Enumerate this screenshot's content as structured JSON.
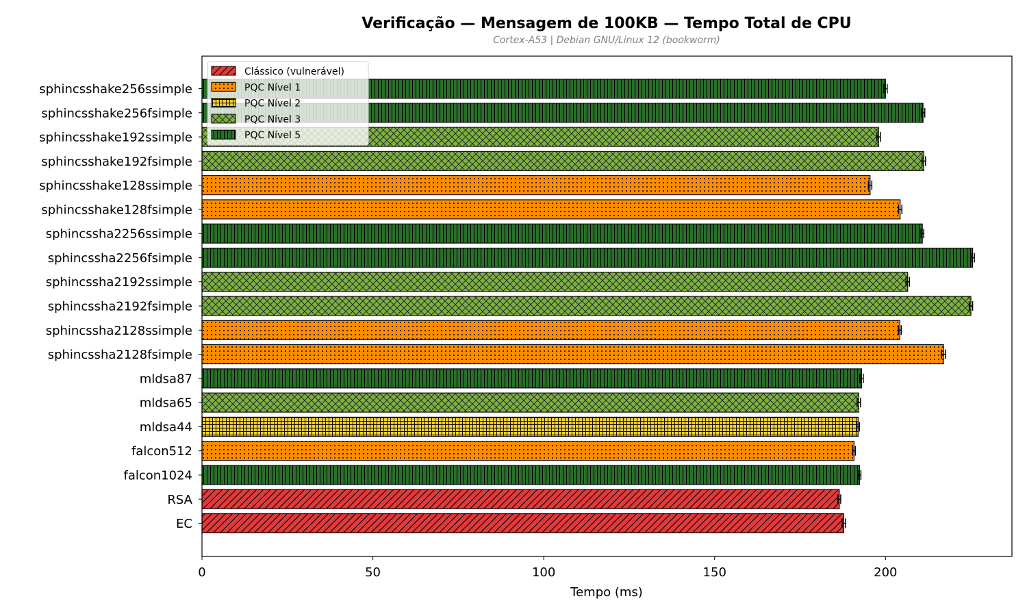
{
  "chart_data": {
    "type": "bar",
    "orientation": "horizontal",
    "title": "Verificação — Mensagem de 100KB — Tempo Total de CPU",
    "subtitle": "Cortex-A53 | Debian GNU/Linux 12 (bookworm)",
    "xlabel": "Tempo (ms)",
    "ylabel": "",
    "xlim": [
      0,
      237
    ],
    "xticks": [
      0,
      50,
      100,
      150,
      200
    ],
    "grid": false,
    "legend_position": "top-left",
    "legend": [
      {
        "key": "classic",
        "label": "Clássico (vulnerável)",
        "color": "#e03a3a",
        "hatch": "diagonal"
      },
      {
        "key": "n1",
        "label": "PQC Nível 1",
        "color": "#ff8c00",
        "hatch": "dots"
      },
      {
        "key": "n2",
        "label": "PQC Nível 2",
        "color": "#f5d033",
        "hatch": "grid"
      },
      {
        "key": "n3",
        "label": "PQC Nível 3",
        "color": "#7cb043",
        "hatch": "crosshatch"
      },
      {
        "key": "n5",
        "label": "PQC Nível 5",
        "color": "#2a6e2a",
        "hatch": "vertical"
      }
    ],
    "bars": [
      {
        "label": "sphincsshake256ssimple",
        "value": 200.0,
        "error": 0.5,
        "category": "n5"
      },
      {
        "label": "sphincsshake256fsimple",
        "value": 211.0,
        "error": 0.5,
        "category": "n5"
      },
      {
        "label": "sphincsshake192ssimple",
        "value": 198.0,
        "error": 0.5,
        "category": "n3"
      },
      {
        "label": "sphincsshake192fsimple",
        "value": 211.2,
        "error": 0.5,
        "category": "n3"
      },
      {
        "label": "sphincsshake128ssimple",
        "value": 195.5,
        "error": 0.5,
        "category": "n1"
      },
      {
        "label": "sphincsshake128fsimple",
        "value": 204.3,
        "error": 0.5,
        "category": "n1"
      },
      {
        "label": "sphincssha2256ssimple",
        "value": 210.8,
        "error": 0.4,
        "category": "n5"
      },
      {
        "label": "sphincssha2256fsimple",
        "value": 225.5,
        "error": 0.5,
        "category": "n5"
      },
      {
        "label": "sphincssha2192ssimple",
        "value": 206.5,
        "error": 0.5,
        "category": "n3"
      },
      {
        "label": "sphincssha2192fsimple",
        "value": 225.0,
        "error": 0.5,
        "category": "n3"
      },
      {
        "label": "sphincssha2128ssimple",
        "value": 204.2,
        "error": 0.4,
        "category": "n1"
      },
      {
        "label": "sphincssha2128fsimple",
        "value": 217.0,
        "error": 0.6,
        "category": "n1"
      },
      {
        "label": "mldsa87",
        "value": 193.0,
        "error": 0.5,
        "category": "n5"
      },
      {
        "label": "mldsa65",
        "value": 192.2,
        "error": 0.5,
        "category": "n3"
      },
      {
        "label": "mldsa44",
        "value": 192.0,
        "error": 0.4,
        "category": "n2"
      },
      {
        "label": "falcon512",
        "value": 190.8,
        "error": 0.4,
        "category": "n1"
      },
      {
        "label": "falcon1024",
        "value": 192.4,
        "error": 0.4,
        "category": "n5"
      },
      {
        "label": "RSA",
        "value": 186.5,
        "error": 0.4,
        "category": "classic"
      },
      {
        "label": "EC",
        "value": 187.8,
        "error": 0.5,
        "category": "classic"
      }
    ]
  }
}
